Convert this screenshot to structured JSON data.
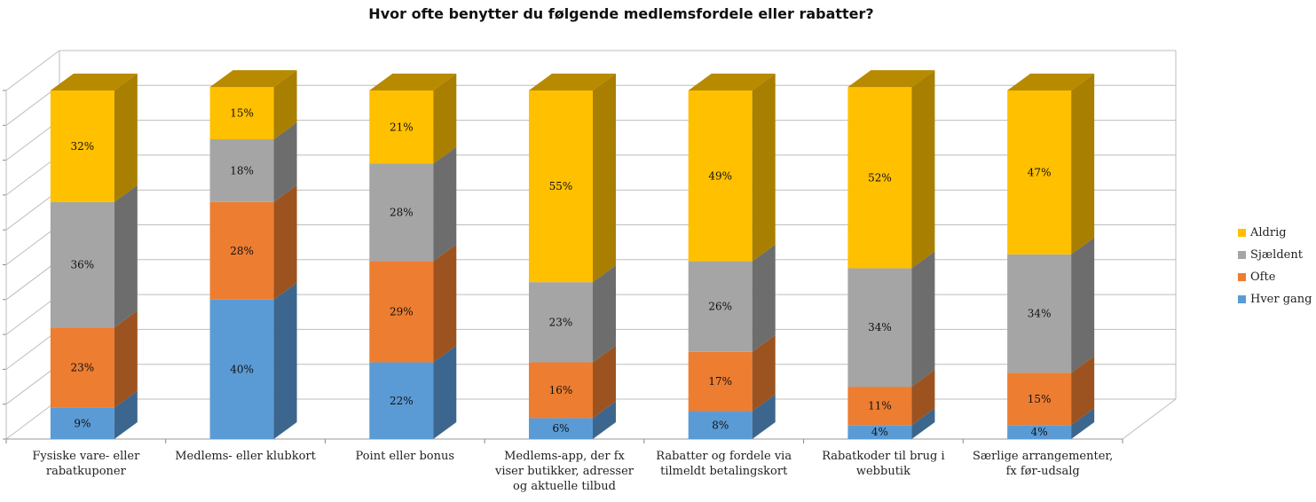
{
  "chart_data": {
    "type": "bar",
    "stacked": true,
    "three_d": true,
    "title": "Hvor ofte benytter du følgende medlemsfordele eller rabatter?",
    "categories": [
      "Fysiske vare- eller rabatkuponer",
      "Medlems- eller klubkort",
      "Point eller bonus",
      "Medlems-app, der fx viser butikker, adresser og aktuelle tilbud",
      "Rabatter og fordele via tilmeldt betalingskort",
      "Rabatkoder til brug i webbutik",
      "Særlige arrangementer, fx før-udsalg"
    ],
    "series": [
      {
        "name": "Hver gang",
        "color": "#5B9BD5",
        "values": [
          9,
          40,
          22,
          6,
          8,
          4,
          4
        ]
      },
      {
        "name": "Ofte",
        "color": "#ED7D31",
        "values": [
          23,
          28,
          29,
          16,
          17,
          11,
          15
        ]
      },
      {
        "name": "Sjældent",
        "color": "#A5A5A5",
        "values": [
          36,
          18,
          28,
          23,
          26,
          34,
          34
        ]
      },
      {
        "name": "Aldrig",
        "color": "#FFC000",
        "values": [
          32,
          15,
          21,
          55,
          49,
          52,
          47
        ]
      }
    ],
    "value_suffix": "%",
    "ylim": [
      0,
      100
    ],
    "grid": true,
    "legend_position": "right"
  }
}
